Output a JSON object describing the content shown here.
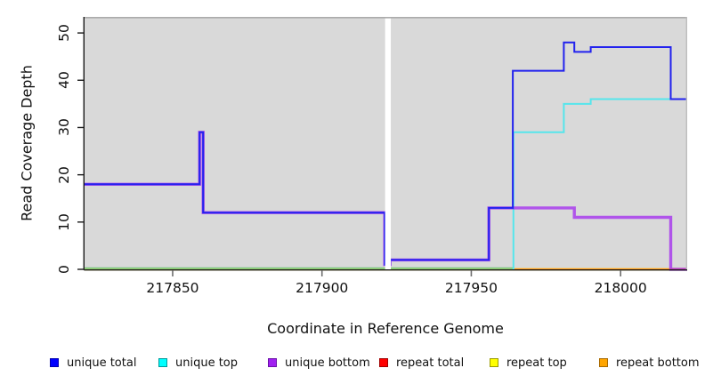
{
  "figure": {
    "x_axis_title": "Coordinate in Reference Genome",
    "y_axis_title": "Read Coverage Depth"
  },
  "chart_data": {
    "type": "line",
    "subtype": "step",
    "title": "",
    "xlabel": "Coordinate in Reference Genome",
    "ylabel": "Read Coverage Depth",
    "xlim": [
      217820.5,
      218022.3
    ],
    "ylim": [
      0,
      53.4
    ],
    "x_ticks": [
      217850,
      217900,
      217950,
      218000
    ],
    "y_ticks": [
      0,
      10,
      20,
      30,
      40,
      50
    ],
    "panel_background": "#D9D9D9",
    "grid": false,
    "legend_position": "bottom",
    "masked_region": {
      "x_start": 217921.5,
      "x_end": 217922.7,
      "color": "#FFFFFF"
    },
    "zero_baseline": {
      "color": "#7CC87F",
      "x_start": 217820.5,
      "x_end": 217963.9,
      "note": "overlapping zero-coverage lines render as a green baseline on the left portion"
    },
    "series": [
      {
        "name": "unique total",
        "color": "#2222EE",
        "width": 2,
        "opacity": 1,
        "points": [
          [
            217820.5,
            18
          ],
          [
            217859,
            29
          ],
          [
            217860.2,
            12
          ],
          [
            217921,
            1
          ],
          [
            217922.8,
            2
          ],
          [
            217955.9,
            13
          ],
          [
            217963.9,
            42
          ],
          [
            217981,
            48
          ],
          [
            217984.5,
            46
          ],
          [
            217990,
            47
          ],
          [
            218016.8,
            36
          ],
          [
            218022.3,
            36
          ]
        ]
      },
      {
        "name": "unique top",
        "color": "#55E6EC",
        "width": 2,
        "opacity": 1,
        "points": [
          [
            217963.9,
            0
          ],
          [
            217964.1,
            29
          ],
          [
            217981,
            35
          ],
          [
            217990,
            36
          ],
          [
            218022.3,
            36
          ]
        ]
      },
      {
        "name": "unique bottom",
        "color": "#A020F0",
        "width": 3.4,
        "opacity": 0.72,
        "points": [
          [
            217820.5,
            18
          ],
          [
            217859,
            29
          ],
          [
            217860.2,
            12
          ],
          [
            217921,
            1
          ],
          [
            217922.8,
            2
          ],
          [
            217955.9,
            13
          ],
          [
            217984.5,
            11
          ],
          [
            218016.8,
            0
          ],
          [
            218022.3,
            0
          ]
        ]
      },
      {
        "name": "repeat total",
        "color": "#EE0000",
        "width": 1,
        "opacity": 1,
        "hidden_under_baseline": true,
        "points": [
          [
            217820.5,
            0
          ],
          [
            218022.3,
            0
          ]
        ]
      },
      {
        "name": "repeat top",
        "color": "#F2E24A",
        "width": 2.8,
        "opacity": 1,
        "hidden_under_baseline": true,
        "points": [
          [
            217820.5,
            0
          ],
          [
            218022.3,
            0
          ]
        ]
      },
      {
        "name": "repeat bottom",
        "color": "#FF9414",
        "width": 2.2,
        "opacity": 1,
        "points": [
          [
            217963.9,
            0
          ],
          [
            218022.3,
            0
          ]
        ]
      }
    ]
  },
  "legend": {
    "items": [
      {
        "label": "unique total",
        "fill": "#0000FF",
        "border": "#0000B0"
      },
      {
        "label": "unique top",
        "fill": "#00FFFF",
        "border": "#009A9A"
      },
      {
        "label": "unique bottom",
        "fill": "#A020F0",
        "border": "#6A10A8"
      },
      {
        "label": "repeat total",
        "fill": "#FF0000",
        "border": "#A00000"
      },
      {
        "label": "repeat top",
        "fill": "#FFFF00",
        "border": "#9A9A00"
      },
      {
        "label": "repeat bottom",
        "fill": "#FFA500",
        "border": "#A86A00"
      }
    ]
  }
}
